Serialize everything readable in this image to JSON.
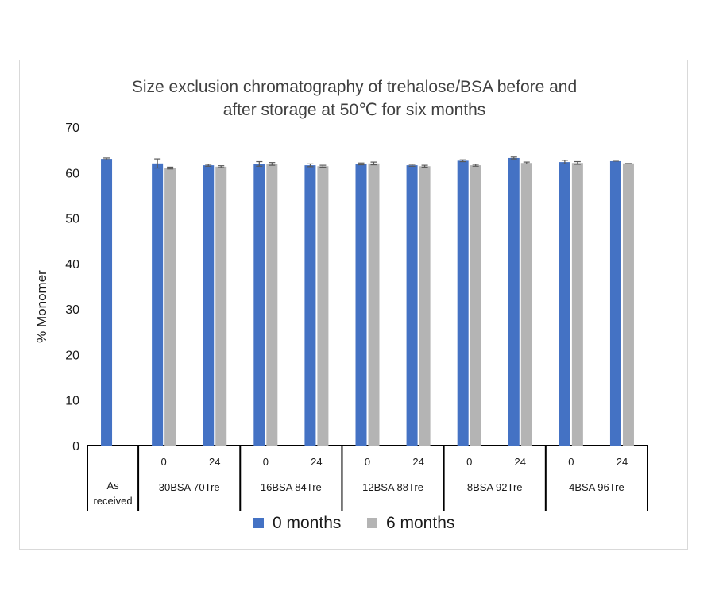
{
  "chart_data": {
    "type": "bar",
    "title_lines": [
      "Size exclusion chromatography of trehalose/BSA before and",
      "after storage at 50℃ for six months"
    ],
    "xlabel": "",
    "ylabel": "% Monomer",
    "ylim": [
      0,
      70
    ],
    "yticks": [
      0,
      10,
      20,
      30,
      40,
      50,
      60,
      70
    ],
    "grid": false,
    "legend_position": "bottom",
    "colors": {
      "0 months": "#4472c4",
      "6 months": "#b4b4b4",
      "error_bar": "#595959"
    },
    "groups": [
      {
        "label": "As received",
        "label_lines": [
          "As",
          "received"
        ],
        "subcategories": [
          ""
        ]
      },
      {
        "label": "30BSA 70Tre",
        "label_lines": [
          "30BSA 70Tre"
        ],
        "subcategories": [
          "0",
          "24"
        ]
      },
      {
        "label": "16BSA 84Tre",
        "label_lines": [
          "16BSA 84Tre"
        ],
        "subcategories": [
          "0",
          "24"
        ]
      },
      {
        "label": "12BSA 88Tre",
        "label_lines": [
          "12BSA 88Tre"
        ],
        "subcategories": [
          "0",
          "24"
        ]
      },
      {
        "label": "8BSA 92Tre",
        "label_lines": [
          "8BSA 92Tre"
        ],
        "subcategories": [
          "0",
          "24"
        ]
      },
      {
        "label": "4BSA 96Tre",
        "label_lines": [
          "4BSA 96Tre"
        ],
        "subcategories": [
          "0",
          "24"
        ]
      }
    ],
    "categories": [
      "As received",
      "30BSA 70Tre 0",
      "30BSA 70Tre 24",
      "16BSA 84Tre 0",
      "16BSA 84Tre 24",
      "12BSA 88Tre 0",
      "12BSA 88Tre 24",
      "8BSA 92Tre 0",
      "8BSA 92Tre 24",
      "4BSA 96Tre 0",
      "4BSA 96Tre 24"
    ],
    "series": [
      {
        "name": "0 months",
        "values": [
          63.0,
          62.0,
          61.6,
          61.9,
          61.6,
          61.9,
          61.6,
          62.6,
          63.2,
          62.3,
          62.5
        ],
        "errors": [
          0.2,
          1.0,
          0.2,
          0.5,
          0.3,
          0.2,
          0.2,
          0.2,
          0.2,
          0.4,
          0
        ]
      },
      {
        "name": "6 months",
        "values": [
          null,
          61.0,
          61.3,
          61.9,
          61.4,
          62.0,
          61.4,
          61.6,
          62.1,
          62.1,
          62.0
        ],
        "errors": [
          0,
          0.2,
          0.2,
          0.3,
          0.2,
          0.3,
          0.2,
          0.2,
          0.2,
          0.3,
          0
        ]
      }
    ]
  }
}
